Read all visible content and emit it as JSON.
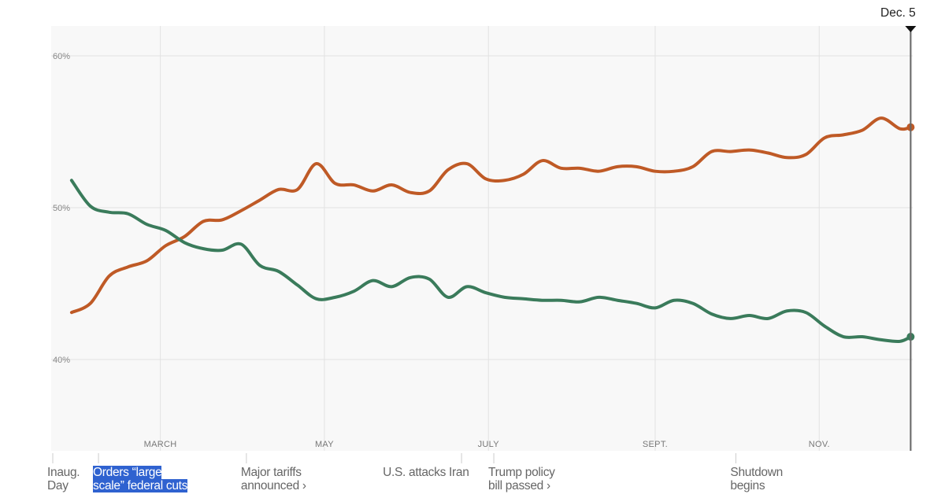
{
  "chart_data": {
    "type": "line",
    "title": "",
    "xlabel": "",
    "ylabel": "",
    "ylim": [
      34,
      62
    ],
    "xlim": [
      "2025-01-20",
      "2025-12-05"
    ],
    "grid": true,
    "y_ticks": [
      {
        "value": 60,
        "label": "60%"
      },
      {
        "value": 50,
        "label": "50%"
      },
      {
        "value": 40,
        "label": "40%"
      }
    ],
    "x_ticks": [
      {
        "date": "2025-03-01",
        "label": "MARCH"
      },
      {
        "date": "2025-05-01",
        "label": "MAY"
      },
      {
        "date": "2025-07-01",
        "label": "JULY"
      },
      {
        "date": "2025-09-01",
        "label": "SEPT."
      },
      {
        "date": "2025-11-01",
        "label": "NOV."
      }
    ],
    "end_marker": {
      "date": "2025-12-05",
      "label": "Dec. 5"
    },
    "x": [
      "2025-01-27",
      "2025-02-03",
      "2025-02-10",
      "2025-02-17",
      "2025-02-24",
      "2025-03-03",
      "2025-03-10",
      "2025-03-17",
      "2025-03-24",
      "2025-03-31",
      "2025-04-07",
      "2025-04-14",
      "2025-04-21",
      "2025-04-28",
      "2025-05-05",
      "2025-05-12",
      "2025-05-19",
      "2025-05-26",
      "2025-06-02",
      "2025-06-09",
      "2025-06-16",
      "2025-06-23",
      "2025-06-30",
      "2025-07-07",
      "2025-07-14",
      "2025-07-21",
      "2025-07-28",
      "2025-08-04",
      "2025-08-11",
      "2025-08-18",
      "2025-08-25",
      "2025-09-01",
      "2025-09-08",
      "2025-09-15",
      "2025-09-22",
      "2025-09-29",
      "2025-10-06",
      "2025-10-13",
      "2025-10-20",
      "2025-10-27",
      "2025-11-03",
      "2025-11-10",
      "2025-11-17",
      "2025-11-24",
      "2025-12-01",
      "2025-12-05"
    ],
    "series": [
      {
        "color": "#bf5a26",
        "values": [
          43.1,
          43.7,
          45.5,
          46.1,
          46.5,
          47.5,
          48.1,
          49.1,
          49.2,
          49.8,
          50.5,
          51.2,
          51.2,
          52.9,
          51.6,
          51.5,
          51.1,
          51.5,
          51.0,
          51.1,
          52.5,
          52.9,
          51.9,
          51.8,
          52.2,
          53.1,
          52.6,
          52.6,
          52.4,
          52.7,
          52.7,
          52.4,
          52.4,
          52.7,
          53.7,
          53.7,
          53.8,
          53.6,
          53.3,
          53.5,
          54.6,
          54.8,
          55.1,
          55.9,
          55.2,
          55.3
        ]
      },
      {
        "color": "#3a7b5b",
        "values": [
          51.8,
          50.1,
          49.7,
          49.6,
          48.9,
          48.5,
          47.7,
          47.3,
          47.2,
          47.6,
          46.2,
          45.8,
          44.9,
          44.0,
          44.1,
          44.5,
          45.2,
          44.8,
          45.4,
          45.3,
          44.1,
          44.8,
          44.4,
          44.1,
          44.0,
          43.9,
          43.9,
          43.8,
          44.1,
          43.9,
          43.7,
          43.4,
          43.9,
          43.7,
          43.0,
          42.7,
          42.9,
          42.7,
          43.2,
          43.1,
          42.2,
          41.5,
          41.5,
          41.3,
          41.2,
          41.5
        ]
      }
    ],
    "annotations": [
      {
        "date": "2025-01-20",
        "label": "Inaug. Day",
        "line1": "Inaug.",
        "line2": "Day"
      },
      {
        "date": "2025-02-06",
        "label": "Orders “large scale” federal cuts",
        "line1": "Orders “large",
        "line2": "scale” federal cuts",
        "highlighted": true
      },
      {
        "date": "2025-04-02",
        "label": "Major tariffs announced ›",
        "line1": "Major tariffs",
        "line2": "announced ›"
      },
      {
        "date": "2025-06-21",
        "label": "U.S. attacks Iran",
        "line1": "U.S. attacks Iran",
        "line2": ""
      },
      {
        "date": "2025-07-03",
        "label": "Trump policy bill passed ›",
        "line1": "Trump policy",
        "line2": "bill passed ›"
      },
      {
        "date": "2025-10-01",
        "label": "Shutdown begins",
        "line1": "Shutdown",
        "line2": "begins"
      }
    ]
  },
  "colors": {
    "plot_background": "#f8f8f8",
    "grid": "#e2e2e2",
    "selection": "#2f62d0"
  }
}
